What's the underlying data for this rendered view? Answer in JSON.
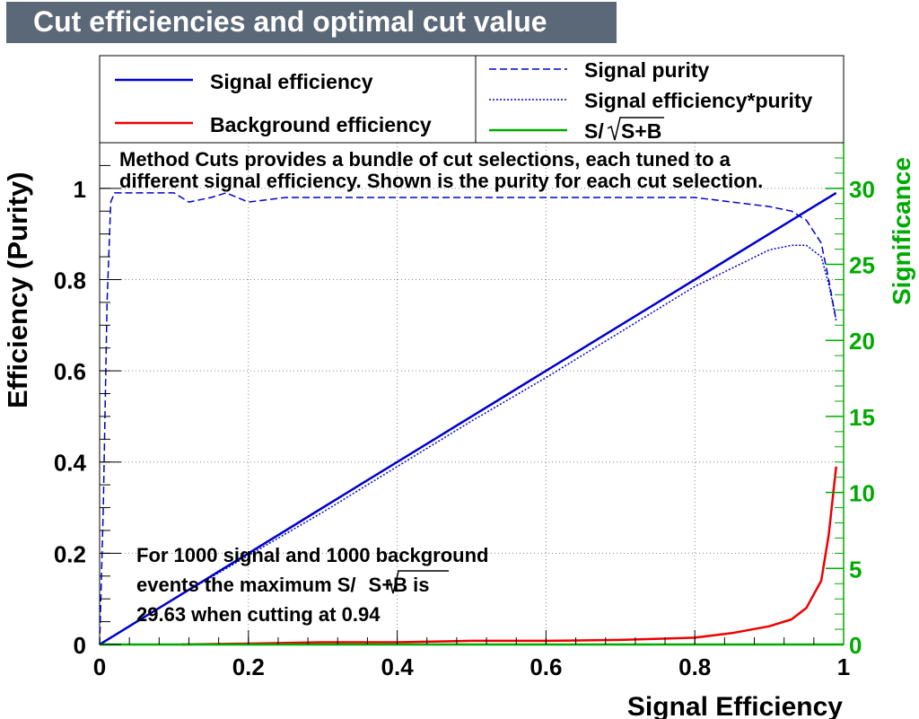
{
  "page": {
    "title": "Cut efficiencies and optimal cut value"
  },
  "colors": {
    "signal_eff": "#0000cc",
    "background_eff": "#ee0000",
    "significance": "#00aa00",
    "grid": "#888888"
  },
  "legend": {
    "entries": [
      {
        "label": "Signal efficiency",
        "style": "solid",
        "color": "#0000cc"
      },
      {
        "label": "Background efficiency",
        "style": "solid",
        "color": "#ee0000"
      },
      {
        "label": "Signal purity",
        "style": "dashed",
        "color": "#0000cc"
      },
      {
        "label": "Signal efficiency*purity",
        "style": "dotted",
        "color": "#0000cc"
      },
      {
        "label": "S/",
        "sqrt_label": "S+B",
        "style": "solid",
        "color": "#00aa00"
      }
    ]
  },
  "annotations": {
    "method_line1": "Method Cuts provides a bundle of cut selections, each tuned to a",
    "method_line2": "different signal efficiency. Shown is the purity for each cut selection.",
    "summary_line1": "For 1000 signal and 1000 background",
    "summary_line2_prefix": "events the maximum S/",
    "summary_line2_sqrt": "S+B",
    "summary_line2_suffix": " is",
    "summary_line3": "29.63 when cutting at  0.94"
  },
  "chart_data": {
    "type": "line",
    "title": "Cut efficiencies and optimal cut value",
    "xlabel": "Signal Efficiency",
    "ylabel": "Efficiency (Purity)",
    "y2label": "Significance",
    "xlim": [
      0,
      1
    ],
    "ylim": [
      0,
      1.1
    ],
    "y2lim": [
      0,
      33
    ],
    "x_ticks": [
      0,
      0.2,
      0.4,
      0.6,
      0.8,
      1
    ],
    "x_tick_labels": [
      "0",
      "0.2",
      "0.4",
      "0.6",
      "0.8",
      "1"
    ],
    "y_ticks": [
      0,
      0.2,
      0.4,
      0.6,
      0.8,
      1
    ],
    "y_tick_labels": [
      "0",
      "0.2",
      "0.4",
      "0.6",
      "0.8",
      "1"
    ],
    "y2_ticks": [
      0,
      5,
      10,
      15,
      20,
      25,
      30
    ],
    "y2_tick_labels": [
      "0",
      "5",
      "10",
      "15",
      "20",
      "25",
      "30"
    ],
    "grid": true,
    "series": [
      {
        "name": "Signal efficiency",
        "axis": "left",
        "x": [
          0.0,
          0.02,
          0.05,
          0.1,
          0.15,
          0.2,
          0.25,
          0.3,
          0.35,
          0.4,
          0.45,
          0.5,
          0.55,
          0.6,
          0.65,
          0.7,
          0.75,
          0.8,
          0.85,
          0.9,
          0.95,
          0.99
        ],
        "y": [
          0.0,
          0.02,
          0.05,
          0.1,
          0.15,
          0.2,
          0.25,
          0.3,
          0.35,
          0.4,
          0.45,
          0.5,
          0.55,
          0.6,
          0.65,
          0.7,
          0.75,
          0.8,
          0.85,
          0.9,
          0.95,
          0.99
        ]
      },
      {
        "name": "Background efficiency",
        "axis": "left",
        "x": [
          0.11,
          0.2,
          0.3,
          0.4,
          0.5,
          0.6,
          0.7,
          0.8,
          0.85,
          0.9,
          0.93,
          0.95,
          0.97,
          0.98,
          0.99
        ],
        "y": [
          0.0,
          0.002,
          0.005,
          0.005,
          0.008,
          0.008,
          0.01,
          0.015,
          0.025,
          0.04,
          0.055,
          0.08,
          0.14,
          0.24,
          0.39
        ]
      },
      {
        "name": "Signal purity",
        "axis": "left",
        "x": [
          0.0,
          0.005,
          0.01,
          0.015,
          0.02,
          0.03,
          0.05,
          0.1,
          0.12,
          0.15,
          0.17,
          0.2,
          0.25,
          0.3,
          0.4,
          0.5,
          0.6,
          0.7,
          0.8,
          0.85,
          0.9,
          0.93,
          0.95,
          0.97,
          0.98,
          0.99
        ],
        "y": [
          0.0,
          0.3,
          0.75,
          0.97,
          0.99,
          0.99,
          0.99,
          0.99,
          0.97,
          0.98,
          0.99,
          0.97,
          0.98,
          0.98,
          0.98,
          0.98,
          0.98,
          0.98,
          0.98,
          0.97,
          0.96,
          0.95,
          0.93,
          0.88,
          0.8,
          0.71
        ]
      },
      {
        "name": "Signal efficiency*purity",
        "axis": "left",
        "x": [
          0.0,
          0.05,
          0.1,
          0.2,
          0.3,
          0.4,
          0.5,
          0.6,
          0.7,
          0.8,
          0.85,
          0.9,
          0.93,
          0.95,
          0.97,
          0.98,
          0.99
        ],
        "y": [
          0.0,
          0.05,
          0.1,
          0.195,
          0.29,
          0.39,
          0.49,
          0.585,
          0.685,
          0.785,
          0.825,
          0.865,
          0.875,
          0.875,
          0.85,
          0.79,
          0.71
        ]
      },
      {
        "name": "S/sqrt(S+B)",
        "axis": "right",
        "x": [
          0.0,
          1.0
        ],
        "y": [
          0.0,
          0.0
        ]
      }
    ],
    "max_significance": 29.63,
    "optimal_cut": 0.94
  }
}
